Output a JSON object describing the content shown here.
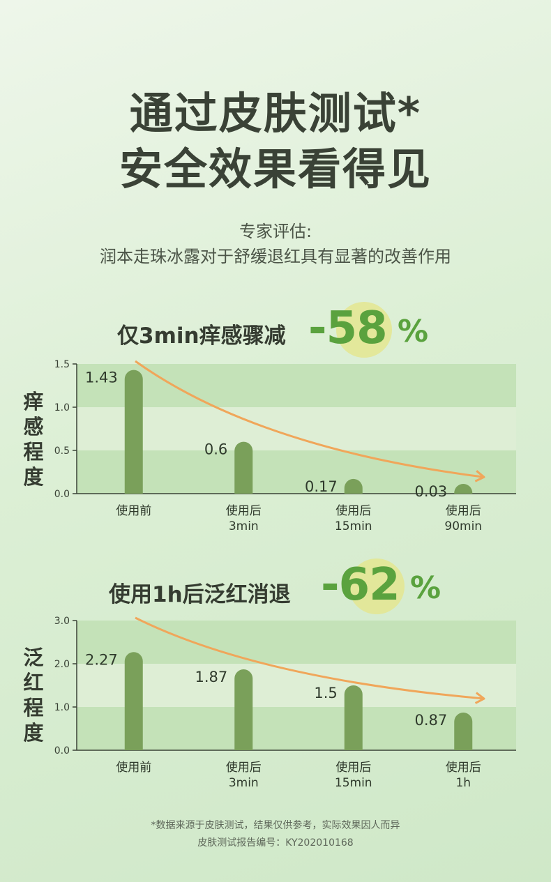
{
  "header": {
    "title_line1": "通过皮肤测试*",
    "title_line2": "安全效果看得见",
    "subtitle_line1": "专家评估:",
    "subtitle_line2": "润本走珠冰露对于舒缓退红具有显著的改善作用"
  },
  "section1": {
    "headline": "仅3min痒感骤减",
    "big_number": "-58",
    "big_unit": "%",
    "y_title": [
      "痒",
      "感",
      "程",
      "度"
    ]
  },
  "section2": {
    "headline": "使用1h后泛红消退",
    "big_number": "-62",
    "big_unit": "%",
    "y_title": [
      "泛",
      "红",
      "程",
      "度"
    ]
  },
  "footer": {
    "note_line1": "*数据来源于皮肤测试，结果仅供参考，实际效果因人而异",
    "note_line2": "皮肤测试报告编号：KY202010168"
  },
  "colors": {
    "bar": "#7aa05a",
    "band_dark": "#c4e2b8",
    "band_light": "#deeed5",
    "trend": "#f0a65a",
    "accent": "#5aa23e"
  },
  "chart_data": [
    {
      "type": "bar",
      "categories": [
        [
          "使用前"
        ],
        [
          "使用后",
          "3min"
        ],
        [
          "使用后",
          "15min"
        ],
        [
          "使用后",
          "90min"
        ]
      ],
      "values": [
        1.43,
        0.6,
        0.17,
        0.03
      ],
      "value_labels": [
        "1.43",
        "0.6",
        "0.17",
        "0.03"
      ],
      "ylim": [
        0,
        1.5
      ],
      "yticks": [
        "0.0",
        "0.5",
        "1.0",
        "1.5"
      ],
      "ylabel": "痒感程度",
      "trend_arrow": true
    },
    {
      "type": "bar",
      "categories": [
        [
          "使用前"
        ],
        [
          "使用后",
          "3min"
        ],
        [
          "使用后",
          "15min"
        ],
        [
          "使用后",
          "1h"
        ]
      ],
      "values": [
        2.27,
        1.87,
        1.5,
        0.87
      ],
      "value_labels": [
        "2.27",
        "1.87",
        "1.5",
        "0.87"
      ],
      "ylim": [
        0,
        3.0
      ],
      "yticks": [
        "0.0",
        "1.0",
        "2.0",
        "3.0"
      ],
      "ylabel": "泛红程度",
      "trend_arrow": true
    }
  ]
}
